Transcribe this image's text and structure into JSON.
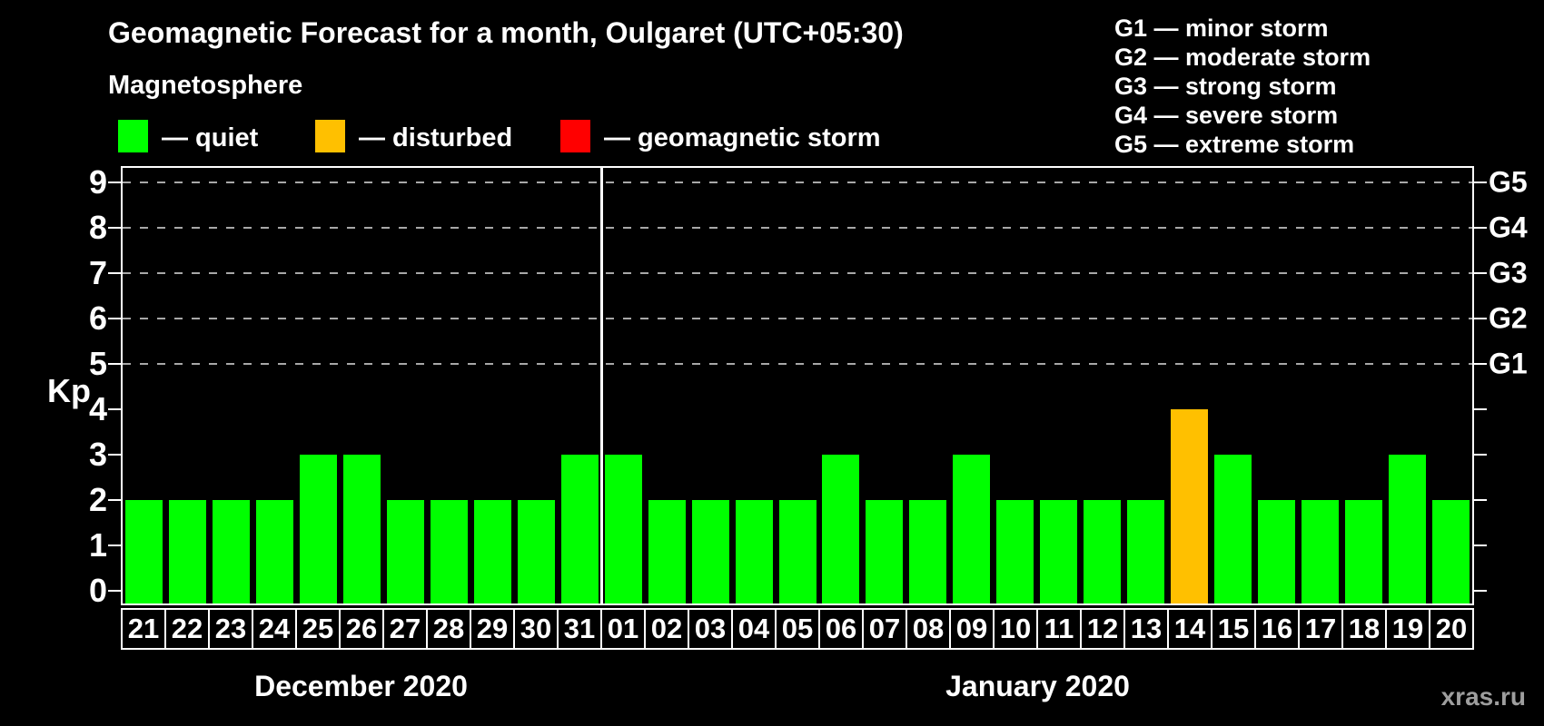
{
  "header": {
    "title": "Geomagnetic Forecast for a month, Oulgaret (UTC+05:30)"
  },
  "legend": {
    "heading": "Magnetosphere",
    "items": [
      {
        "name": "quiet",
        "label": "— quiet",
        "color": "#00ff00"
      },
      {
        "name": "disturbed",
        "label": "— disturbed",
        "color": "#ffc000"
      },
      {
        "name": "storm",
        "label": "— geomagnetic storm",
        "color": "#ff0000"
      }
    ]
  },
  "storm_legend": {
    "lines": [
      "G1 — minor storm",
      "G2 — moderate storm",
      "G3 — strong storm",
      "G4 — severe storm",
      "G5 — extreme storm"
    ]
  },
  "watermark": "xras.ru",
  "chart_data": {
    "type": "bar",
    "title": "Geomagnetic Forecast for a month, Oulgaret (UTC+05:30)",
    "ylabel": "Kp",
    "ylim": [
      0,
      9
    ],
    "y_ticks": [
      0,
      1,
      2,
      3,
      4,
      5,
      6,
      7,
      8,
      9
    ],
    "gridlines_at": [
      5,
      6,
      7,
      8,
      9
    ],
    "grid": "dashed horizontal at storm levels only",
    "legend_position": "top",
    "g_scale": [
      {
        "kp": 5,
        "label": "G1"
      },
      {
        "kp": 6,
        "label": "G2"
      },
      {
        "kp": 7,
        "label": "G3"
      },
      {
        "kp": 8,
        "label": "G4"
      },
      {
        "kp": 9,
        "label": "G5"
      }
    ],
    "state_colors": {
      "quiet": "#00ff00",
      "disturbed": "#ffc000",
      "storm": "#ff0000"
    },
    "months": [
      {
        "label": "December 2020",
        "points": [
          {
            "day": "21",
            "kp": 2,
            "state": "quiet"
          },
          {
            "day": "22",
            "kp": 2,
            "state": "quiet"
          },
          {
            "day": "23",
            "kp": 2,
            "state": "quiet"
          },
          {
            "day": "24",
            "kp": 2,
            "state": "quiet"
          },
          {
            "day": "25",
            "kp": 3,
            "state": "quiet"
          },
          {
            "day": "26",
            "kp": 3,
            "state": "quiet"
          },
          {
            "day": "27",
            "kp": 2,
            "state": "quiet"
          },
          {
            "day": "28",
            "kp": 2,
            "state": "quiet"
          },
          {
            "day": "29",
            "kp": 2,
            "state": "quiet"
          },
          {
            "day": "30",
            "kp": 2,
            "state": "quiet"
          },
          {
            "day": "31",
            "kp": 3,
            "state": "quiet"
          }
        ]
      },
      {
        "label": "January 2020",
        "points": [
          {
            "day": "01",
            "kp": 3,
            "state": "quiet"
          },
          {
            "day": "02",
            "kp": 2,
            "state": "quiet"
          },
          {
            "day": "03",
            "kp": 2,
            "state": "quiet"
          },
          {
            "day": "04",
            "kp": 2,
            "state": "quiet"
          },
          {
            "day": "05",
            "kp": 2,
            "state": "quiet"
          },
          {
            "day": "06",
            "kp": 3,
            "state": "quiet"
          },
          {
            "day": "07",
            "kp": 2,
            "state": "quiet"
          },
          {
            "day": "08",
            "kp": 2,
            "state": "quiet"
          },
          {
            "day": "09",
            "kp": 3,
            "state": "quiet"
          },
          {
            "day": "10",
            "kp": 2,
            "state": "quiet"
          },
          {
            "day": "11",
            "kp": 2,
            "state": "quiet"
          },
          {
            "day": "12",
            "kp": 2,
            "state": "quiet"
          },
          {
            "day": "13",
            "kp": 2,
            "state": "quiet"
          },
          {
            "day": "14",
            "kp": 4,
            "state": "disturbed"
          },
          {
            "day": "15",
            "kp": 3,
            "state": "quiet"
          },
          {
            "day": "16",
            "kp": 2,
            "state": "quiet"
          },
          {
            "day": "17",
            "kp": 2,
            "state": "quiet"
          },
          {
            "day": "18",
            "kp": 2,
            "state": "quiet"
          },
          {
            "day": "19",
            "kp": 3,
            "state": "quiet"
          },
          {
            "day": "20",
            "kp": 2,
            "state": "quiet"
          }
        ]
      }
    ]
  }
}
